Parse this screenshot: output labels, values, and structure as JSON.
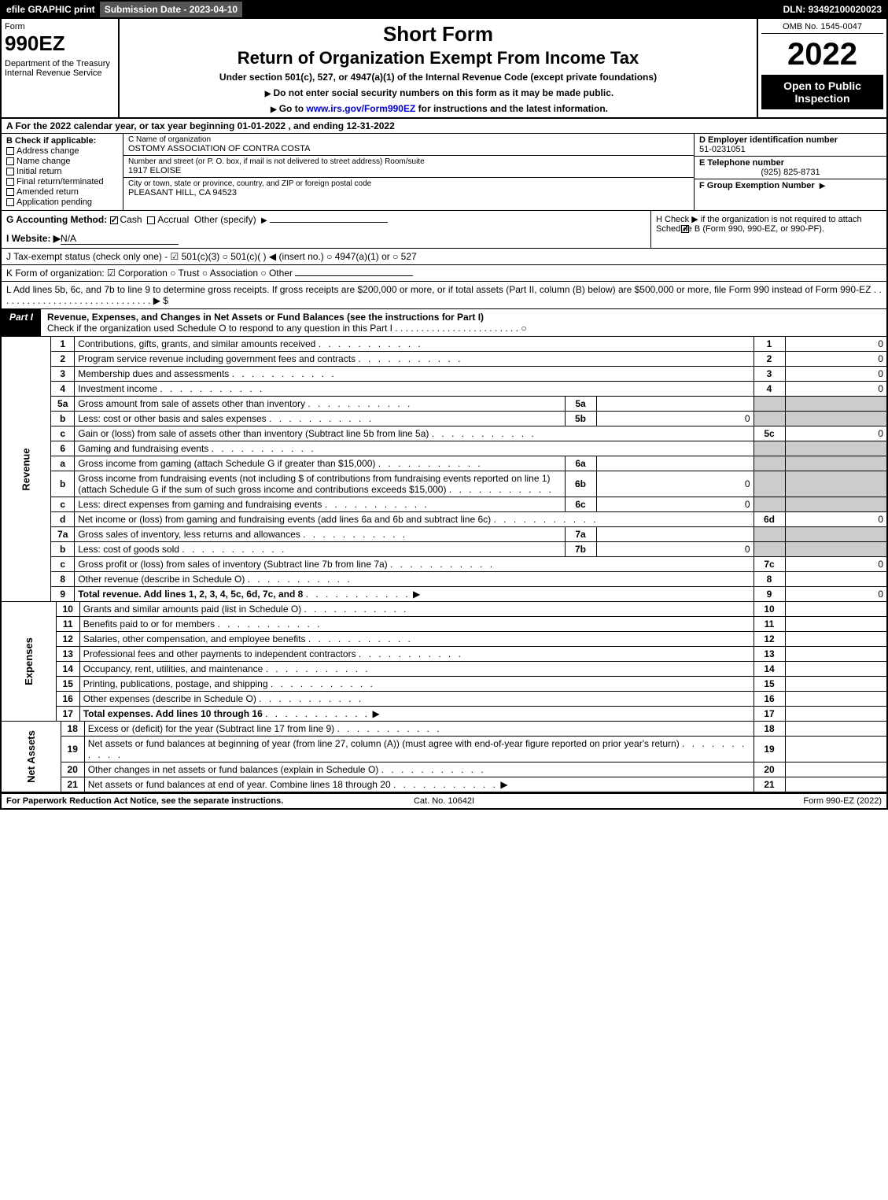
{
  "top": {
    "efile": "efile GRAPHIC print",
    "subdate": "Submission Date - 2023-04-10",
    "dln": "DLN: 93492100020023"
  },
  "header": {
    "formword": "Form",
    "formnum": "990EZ",
    "dept": "Department of the Treasury\nInternal Revenue Service",
    "shortform": "Short Form",
    "return": "Return of Organization Exempt From Income Tax",
    "under": "Under section 501(c), 527, or 4947(a)(1) of the Internal Revenue Code (except private foundations)",
    "note1": "Do not enter social security numbers on this form as it may be made public.",
    "note2_pre": "Go to ",
    "note2_link": "www.irs.gov/Form990EZ",
    "note2_post": " for instructions and the latest information.",
    "omb": "OMB No. 1545-0047",
    "year": "2022",
    "inspect": "Open to Public Inspection"
  },
  "A": "A  For the 2022 calendar year, or tax year beginning 01-01-2022  , and ending 12-31-2022",
  "B": {
    "label": "B  Check if applicable:",
    "items": [
      "Address change",
      "Name change",
      "Initial return",
      "Final return/terminated",
      "Amended return",
      "Application pending"
    ]
  },
  "C": {
    "name_lbl": "C Name of organization",
    "name": "OSTOMY ASSOCIATION OF CONTRA COSTA",
    "addr_lbl": "Number and street (or P. O. box, if mail is not delivered to street address)          Room/suite",
    "addr": "1917 ELOISE",
    "city_lbl": "City or town, state or province, country, and ZIP or foreign postal code",
    "city": "PLEASANT HILL, CA   94523"
  },
  "D": {
    "ein_lbl": "D Employer identification number",
    "ein": "51-0231051"
  },
  "E": {
    "tel_lbl": "E Telephone number",
    "tel": "(925) 825-8731"
  },
  "F": {
    "grp_lbl": "F Group Exemption Number"
  },
  "G": {
    "lbl": "G Accounting Method:",
    "cash": "Cash",
    "accrual": "Accrual",
    "other": "Other (specify)"
  },
  "H": {
    "text": "H   Check ▶        if the organization is not required to attach Schedule B (Form 990, 990-EZ, or 990-PF)."
  },
  "I": {
    "lbl": "I Website: ▶",
    "val": "N/A"
  },
  "J": {
    "text": "J Tax-exempt status (check only one) -  ☑ 501(c)(3)  ○ 501(c)(   ) ◀ (insert no.)  ○ 4947(a)(1) or  ○ 527"
  },
  "K": {
    "text": "K Form of organization:   ☑ Corporation   ○ Trust   ○ Association   ○ Other"
  },
  "L": {
    "text": "L Add lines 5b, 6c, and 7b to line 9 to determine gross receipts. If gross receipts are $200,000 or more, or if total assets (Part II, column (B) below) are $500,000 or more, file Form 990 instead of Form 990-EZ  . . . . . . . . . . . . . . . . . . . . . . . . . . . . . . ▶ $"
  },
  "part1": {
    "tab": "Part I",
    "title": "Revenue, Expenses, and Changes in Net Assets or Fund Balances (see the instructions for Part I)",
    "check": "Check if the organization used Schedule O to respond to any question in this Part I  . . . . . . . . . . . . . . . . . . . . . . . .  ○"
  },
  "revenue_rows": [
    {
      "n": "1",
      "desc": "Contributions, gifts, grants, and similar amounts received",
      "r": "1",
      "v": "0"
    },
    {
      "n": "2",
      "desc": "Program service revenue including government fees and contracts",
      "r": "2",
      "v": "0"
    },
    {
      "n": "3",
      "desc": "Membership dues and assessments",
      "r": "3",
      "v": "0"
    },
    {
      "n": "4",
      "desc": "Investment income",
      "r": "4",
      "v": "0"
    },
    {
      "n": "5a",
      "desc": "Gross amount from sale of assets other than inventory",
      "sub": "5a",
      "subv": ""
    },
    {
      "n": "b",
      "desc": "Less: cost or other basis and sales expenses",
      "sub": "5b",
      "subv": "0"
    },
    {
      "n": "c",
      "desc": "Gain or (loss) from sale of assets other than inventory (Subtract line 5b from line 5a)",
      "r": "5c",
      "v": "0"
    },
    {
      "n": "6",
      "desc": "Gaming and fundraising events",
      "shade": true
    },
    {
      "n": "a",
      "desc": "Gross income from gaming (attach Schedule G if greater than $15,000)",
      "sub": "6a",
      "subv": ""
    },
    {
      "n": "b",
      "desc": "Gross income from fundraising events (not including $                       of contributions from fundraising events reported on line 1) (attach Schedule G if the sum of such gross income and contributions exceeds $15,000)",
      "sub": "6b",
      "subv": "0"
    },
    {
      "n": "c",
      "desc": "Less: direct expenses from gaming and fundraising events",
      "sub": "6c",
      "subv": "0"
    },
    {
      "n": "d",
      "desc": "Net income or (loss) from gaming and fundraising events (add lines 6a and 6b and subtract line 6c)",
      "r": "6d",
      "v": "0"
    },
    {
      "n": "7a",
      "desc": "Gross sales of inventory, less returns and allowances",
      "sub": "7a",
      "subv": ""
    },
    {
      "n": "b",
      "desc": "Less: cost of goods sold",
      "sub": "7b",
      "subv": "0"
    },
    {
      "n": "c",
      "desc": "Gross profit or (loss) from sales of inventory (Subtract line 7b from line 7a)",
      "r": "7c",
      "v": "0"
    },
    {
      "n": "8",
      "desc": "Other revenue (describe in Schedule O)",
      "r": "8",
      "v": ""
    },
    {
      "n": "9",
      "desc": "Total revenue. Add lines 1, 2, 3, 4, 5c, 6d, 7c, and 8",
      "r": "9",
      "v": "0",
      "bold": true,
      "arrow": true
    }
  ],
  "expense_rows": [
    {
      "n": "10",
      "desc": "Grants and similar amounts paid (list in Schedule O)",
      "r": "10"
    },
    {
      "n": "11",
      "desc": "Benefits paid to or for members",
      "r": "11"
    },
    {
      "n": "12",
      "desc": "Salaries, other compensation, and employee benefits",
      "r": "12"
    },
    {
      "n": "13",
      "desc": "Professional fees and other payments to independent contractors",
      "r": "13"
    },
    {
      "n": "14",
      "desc": "Occupancy, rent, utilities, and maintenance",
      "r": "14"
    },
    {
      "n": "15",
      "desc": "Printing, publications, postage, and shipping",
      "r": "15"
    },
    {
      "n": "16",
      "desc": "Other expenses (describe in Schedule O)",
      "r": "16"
    },
    {
      "n": "17",
      "desc": "Total expenses. Add lines 10 through 16",
      "r": "17",
      "bold": true,
      "arrow": true
    }
  ],
  "netassets_rows": [
    {
      "n": "18",
      "desc": "Excess or (deficit) for the year (Subtract line 17 from line 9)",
      "r": "18"
    },
    {
      "n": "19",
      "desc": "Net assets or fund balances at beginning of year (from line 27, column (A)) (must agree with end-of-year figure reported on prior year's return)",
      "r": "19"
    },
    {
      "n": "20",
      "desc": "Other changes in net assets or fund balances (explain in Schedule O)",
      "r": "20"
    },
    {
      "n": "21",
      "desc": "Net assets or fund balances at end of year. Combine lines 18 through 20",
      "r": "21",
      "arrow": true
    }
  ],
  "side_labels": {
    "revenue": "Revenue",
    "expenses": "Expenses",
    "netassets": "Net Assets"
  },
  "footer": {
    "left": "For Paperwork Reduction Act Notice, see the separate instructions.",
    "center": "Cat. No. 10642I",
    "right": "Form 990-EZ (2022)"
  },
  "style": {
    "bg": "#ffffff",
    "border": "#000000",
    "shade": "#cccccc",
    "topbar_bg": "#000000",
    "topbar_gray": "#555555"
  }
}
